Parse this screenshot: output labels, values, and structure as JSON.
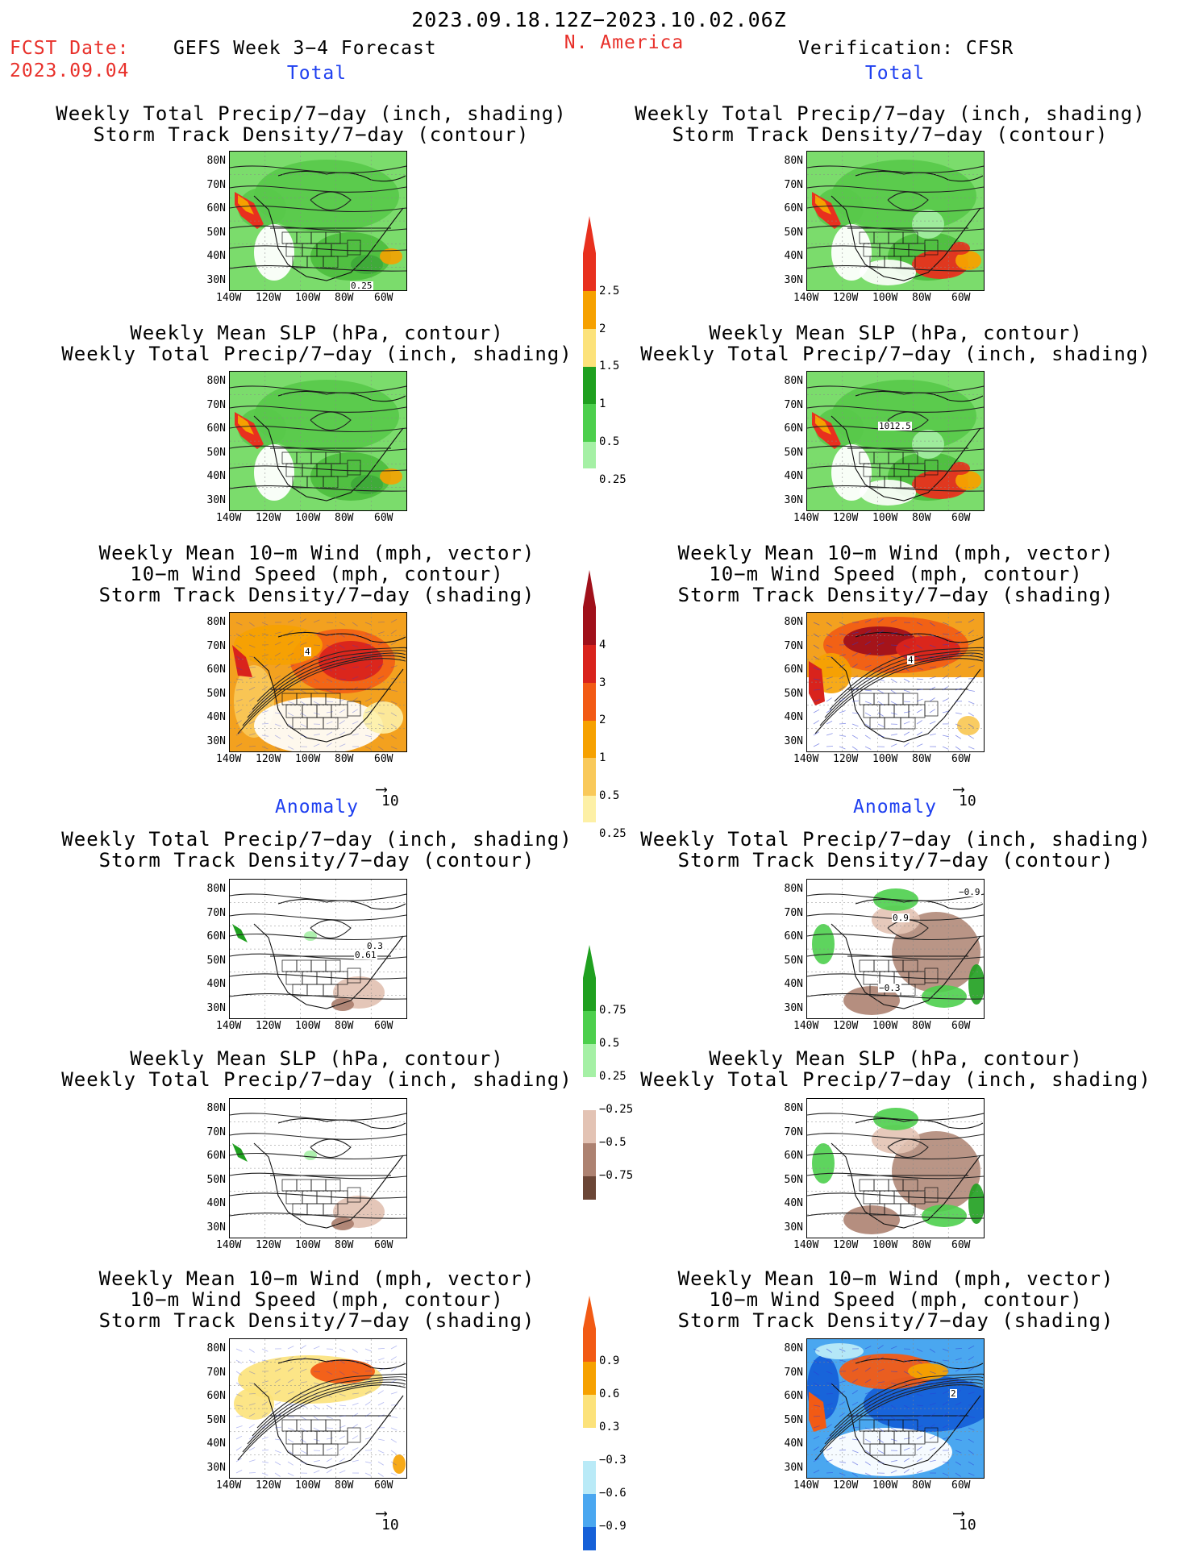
{
  "header": {
    "date_range": "2023.09.18.12Z−2023.10.02.06Z",
    "fcst_label": "FCST Date:",
    "fcst_date": "2023.09.04",
    "forecast_title": "GEFS Week 3−4 Forecast",
    "region": "N. America",
    "verification": "Verification: CFSR"
  },
  "sections": {
    "total": "Total",
    "anomaly": "Anomaly"
  },
  "titles": {
    "precip_track": [
      "Weekly Total Precip/7−day (inch, shading)",
      "Storm Track Density/7−day (contour)"
    ],
    "slp_precip": [
      "Weekly Mean SLP (hPa, contour)",
      "Weekly Total Precip/7−day (inch, shading)"
    ],
    "wind_track": [
      "Weekly Mean 10−m Wind (mph, vector)",
      "10−m Wind Speed (mph, contour)",
      "Storm Track Density/7−day (shading)"
    ]
  },
  "axes": {
    "lat": [
      "80N",
      "70N",
      "60N",
      "50N",
      "40N",
      "30N"
    ],
    "lon": [
      "140W",
      "120W",
      "100W",
      "80W",
      "60W"
    ]
  },
  "vector_ref": "10",
  "panel_labels": {
    "p1": "0.25",
    "p4": "1012.5",
    "p6": "4",
    "p5": "4",
    "p7a": "0.61",
    "p7b": "0.3",
    "p8a": "−0.9",
    "p8b": "0.9",
    "p8c": "−0.3",
    "p11": "2"
  },
  "colorbars": {
    "precip_total": {
      "labels": [
        "2.5",
        "2",
        "1.5",
        "1",
        "0.5",
        "0.25"
      ],
      "colors": [
        "#e8301e",
        "#f6a100",
        "#fce27a",
        "#1fa01f",
        "#4ccf4c",
        "#a5f0a5"
      ]
    },
    "track_total": {
      "labels": [
        "4",
        "3",
        "2",
        "1",
        "0.5",
        "0.25"
      ],
      "colors": [
        "#a0101a",
        "#d9231c",
        "#f25a14",
        "#f6a100",
        "#f9c95a",
        "#fdf0a6"
      ]
    },
    "precip_anom": {
      "labels": [
        "0.75",
        "0.5",
        "0.25",
        "−0.25",
        "−0.5",
        "−0.75"
      ],
      "colors": [
        "#1fa01f",
        "#4ccf4c",
        "#a5f0a5",
        "#ffffff",
        "#e3c3b4",
        "#ad8271",
        "#6b4636"
      ]
    },
    "track_anom": {
      "labels": [
        "0.9",
        "0.6",
        "0.3",
        "−0.3",
        "−0.6",
        "−0.9"
      ],
      "colors": [
        "#f25a14",
        "#f6a100",
        "#fce27a",
        "#ffffff",
        "#b9eaf7",
        "#4aa7f0",
        "#1560d8"
      ]
    }
  }
}
